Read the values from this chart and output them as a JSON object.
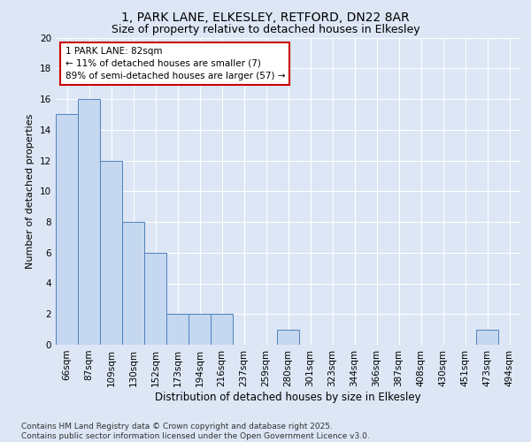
{
  "title1": "1, PARK LANE, ELKESLEY, RETFORD, DN22 8AR",
  "title2": "Size of property relative to detached houses in Elkesley",
  "xlabel": "Distribution of detached houses by size in Elkesley",
  "ylabel": "Number of detached properties",
  "categories": [
    "66sqm",
    "87sqm",
    "109sqm",
    "130sqm",
    "152sqm",
    "173sqm",
    "194sqm",
    "216sqm",
    "237sqm",
    "259sqm",
    "280sqm",
    "301sqm",
    "323sqm",
    "344sqm",
    "366sqm",
    "387sqm",
    "408sqm",
    "430sqm",
    "451sqm",
    "473sqm",
    "494sqm"
  ],
  "values": [
    15,
    16,
    12,
    8,
    6,
    2,
    2,
    2,
    0,
    0,
    1,
    0,
    0,
    0,
    0,
    0,
    0,
    0,
    0,
    1,
    0
  ],
  "bar_color": "#c5d8f0",
  "bar_edge_color": "#4f81bd",
  "annotation_text": "1 PARK LANE: 82sqm\n← 11% of detached houses are smaller (7)\n89% of semi-detached houses are larger (57) →",
  "annotation_box_facecolor": "white",
  "annotation_box_edgecolor": "#cc0000",
  "ylim": [
    0,
    20
  ],
  "yticks": [
    0,
    2,
    4,
    6,
    8,
    10,
    12,
    14,
    16,
    18,
    20
  ],
  "background_color": "#dce6f5",
  "plot_bg_color": "#dce6f5",
  "grid_color": "white",
  "footer_line1": "Contains HM Land Registry data © Crown copyright and database right 2025.",
  "footer_line2": "Contains public sector information licensed under the Open Government Licence v3.0.",
  "title1_fontsize": 10,
  "title2_fontsize": 9,
  "xlabel_fontsize": 8.5,
  "ylabel_fontsize": 8,
  "tick_fontsize": 7.5,
  "annotation_fontsize": 7.5,
  "footer_fontsize": 6.5
}
